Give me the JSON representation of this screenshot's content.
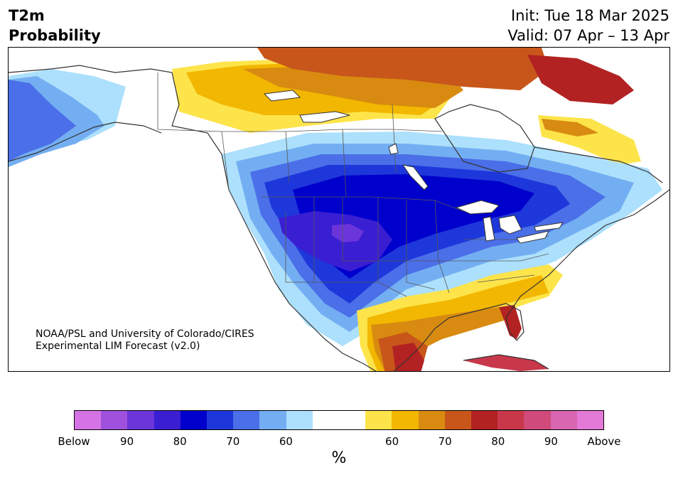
{
  "header": {
    "variable_line1": "T2m",
    "variable_line2": "Probability",
    "init": "Init: Tue 18 Mar 2025",
    "valid": "Valid: 07 Apr – 13 Apr"
  },
  "map": {
    "region": "North America",
    "credit_line1": "NOAA/PSL and University of Colorado/CIRES",
    "credit_line2": "Experimental LIM Forecast (v2.0)",
    "colors": {
      "land_outline": "#333333",
      "below_strong": "#2a34d2",
      "below_core": "#0000cd",
      "below_purple": "#4a2fd8",
      "above_yellow": "#f2b700",
      "above_orange": "#d87f10",
      "above_red": "#b22222"
    }
  },
  "colorbar": {
    "colors": [
      "#d573e6",
      "#9f51de",
      "#6b35da",
      "#3a1ed2",
      "#0000cd",
      "#1e37da",
      "#4a6fe8",
      "#74aef2",
      "#ace0fc",
      "#ffffff",
      "#ffffff",
      "#fde44a",
      "#f2b700",
      "#d88b10",
      "#c8561a",
      "#b22222",
      "#c8384a",
      "#d04a7a",
      "#d866b0",
      "#e47ad8"
    ],
    "tick_labels": [
      "Below",
      "90",
      "80",
      "70",
      "60",
      "60",
      "70",
      "80",
      "90",
      "Above"
    ],
    "unit": "%"
  }
}
